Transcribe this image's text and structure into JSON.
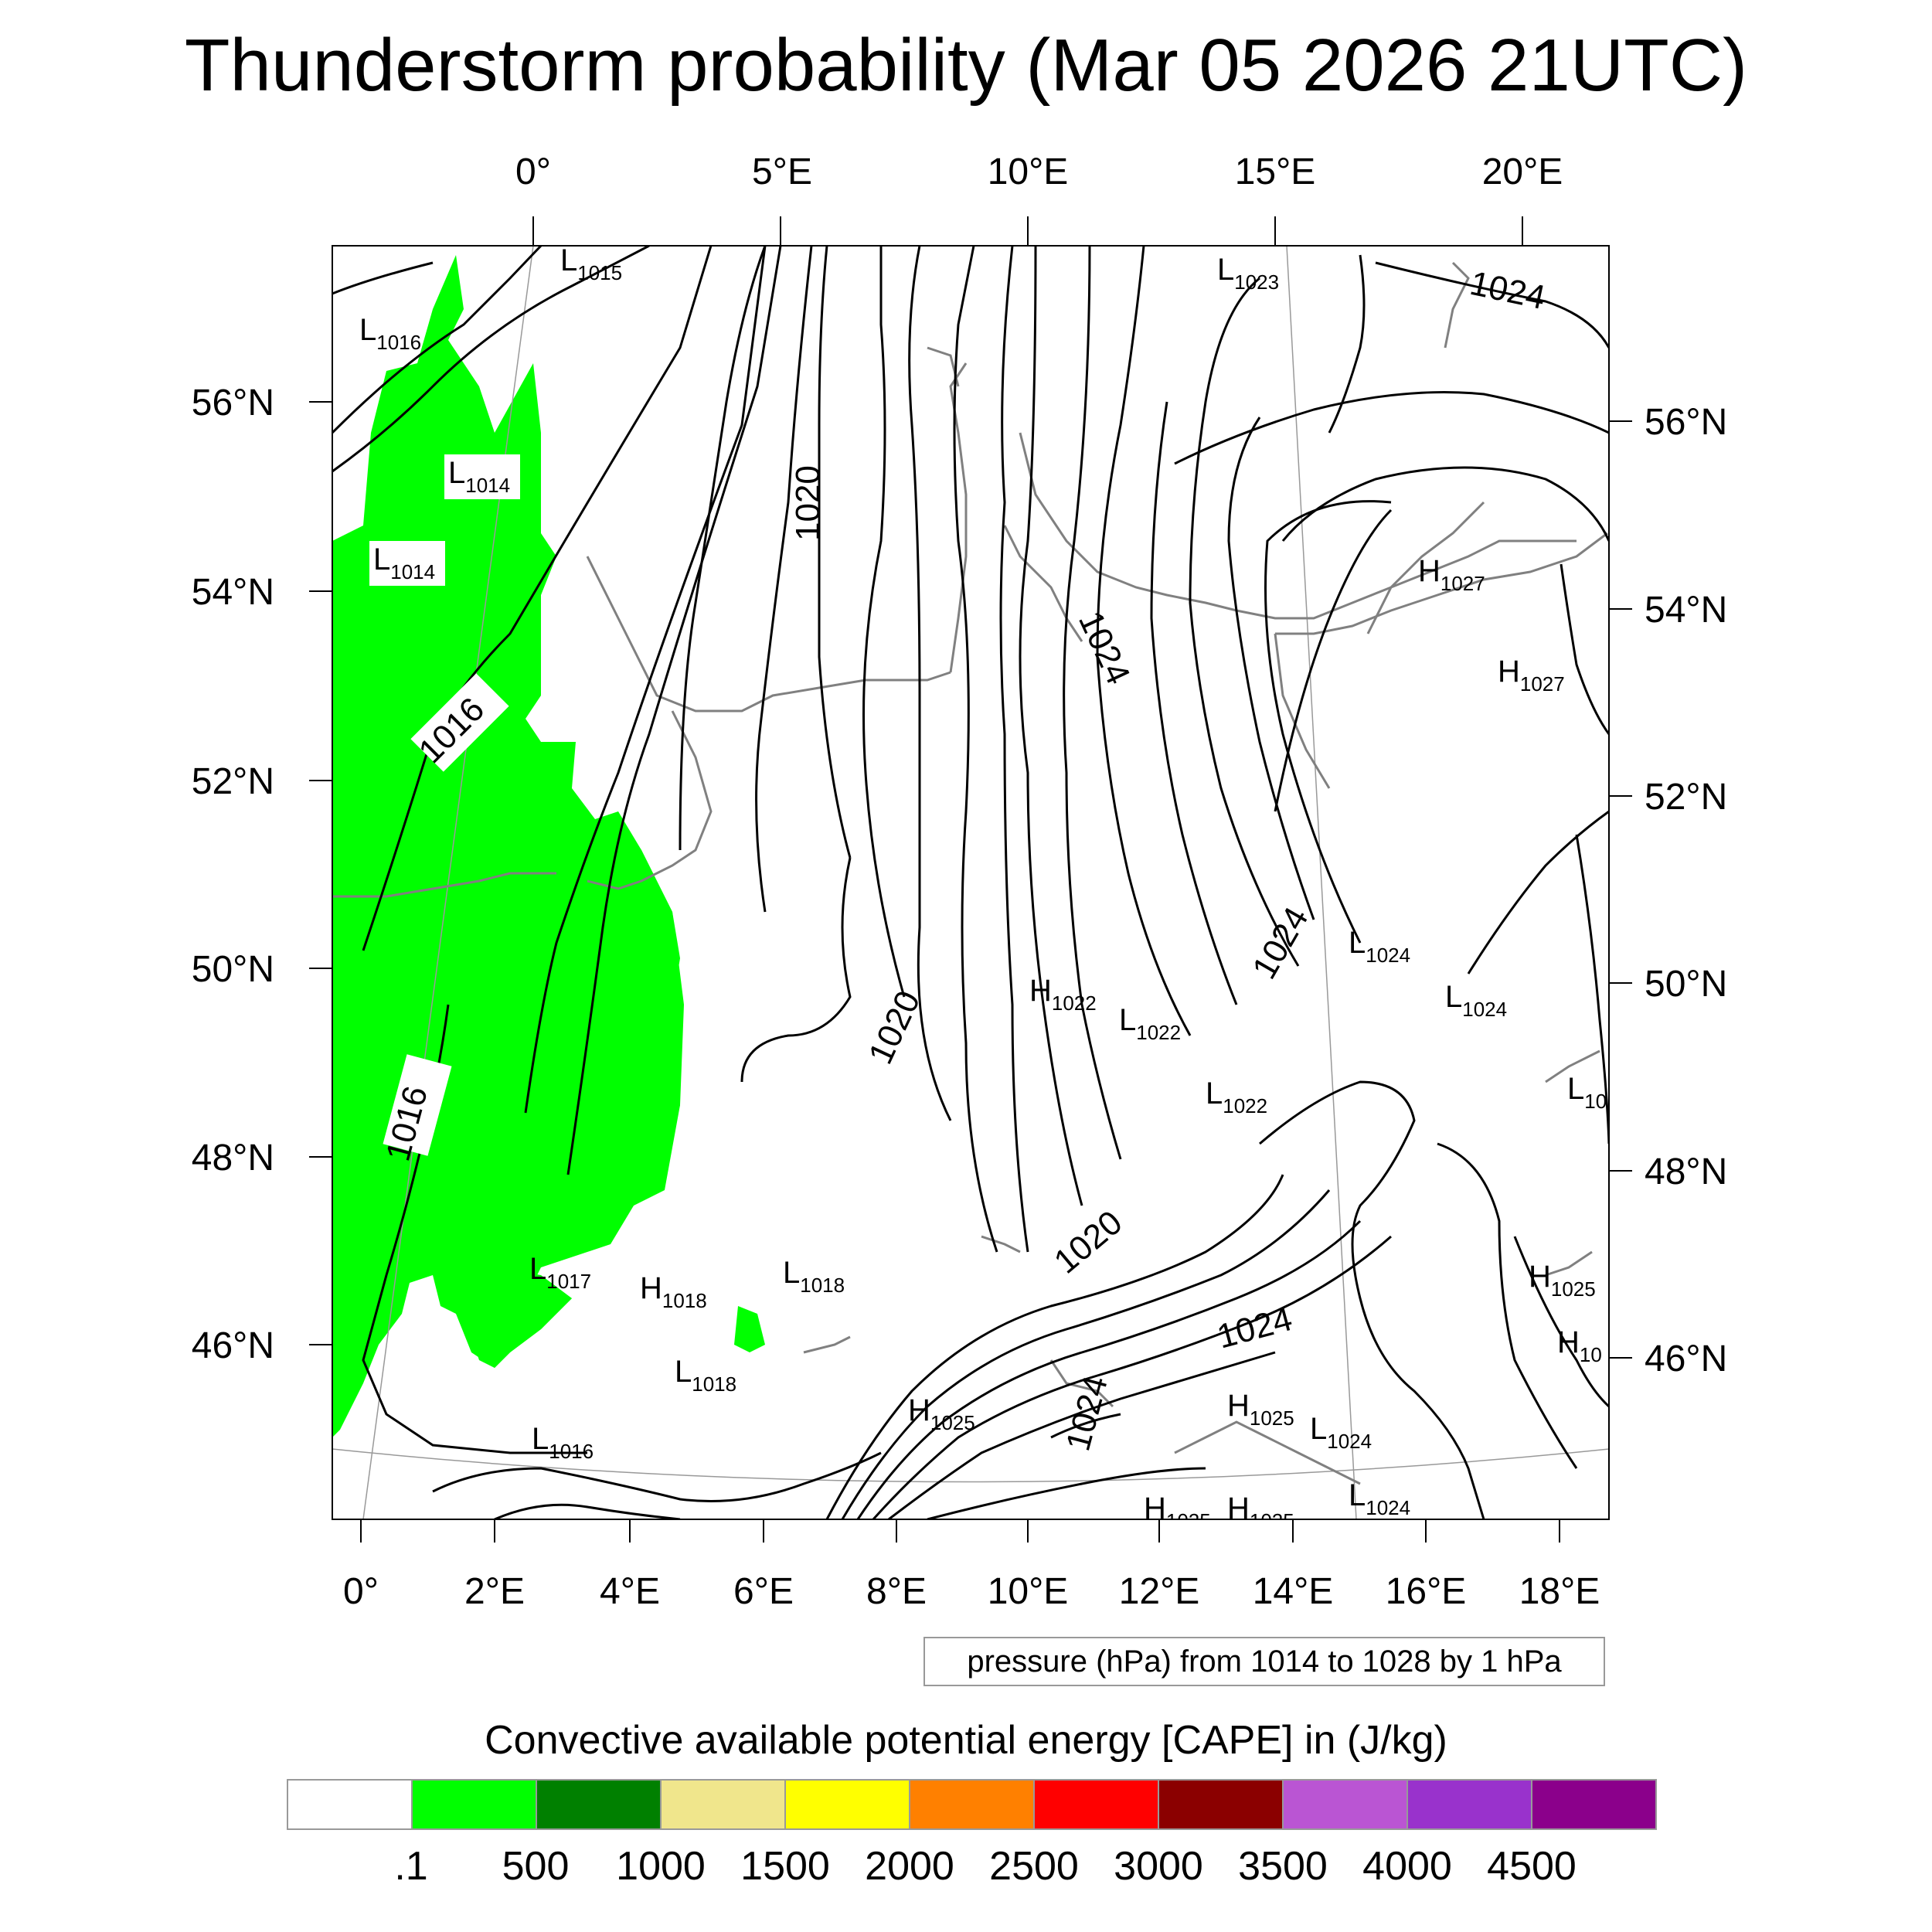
{
  "title": "Thunderstorm probability (Mar 05 2026 21UTC)",
  "top_lon_labels": [
    "0°",
    "5°E",
    "10°E",
    "15°E",
    "20°E"
  ],
  "left_lat_labels": [
    "56°N",
    "54°N",
    "52°N",
    "50°N",
    "48°N",
    "46°N"
  ],
  "right_lat_labels": [
    "56°N",
    "54°N",
    "52°N",
    "50°N",
    "48°N",
    "46°N"
  ],
  "bottom_lon_labels": [
    "0°",
    "2°E",
    "4°E",
    "6°E",
    "8°E",
    "10°E",
    "12°E",
    "14°E",
    "16°E",
    "18°E"
  ],
  "pressure_centers": [
    {
      "type": "L",
      "value": "1015"
    },
    {
      "type": "L",
      "value": "1016"
    },
    {
      "type": "L",
      "value": "1014"
    },
    {
      "type": "L",
      "value": "1014"
    },
    {
      "type": "L",
      "value": "1023"
    },
    {
      "type": "H",
      "value": "1027"
    },
    {
      "type": "H",
      "value": "1027"
    },
    {
      "type": "L",
      "value": "1024"
    },
    {
      "type": "L",
      "value": "1024"
    },
    {
      "type": "H",
      "value": "1022"
    },
    {
      "type": "L",
      "value": "1022"
    },
    {
      "type": "L",
      "value": "1022"
    },
    {
      "type": "L",
      "value": "10"
    },
    {
      "type": "L",
      "value": "1017"
    },
    {
      "type": "H",
      "value": "1018"
    },
    {
      "type": "L",
      "value": "1018"
    },
    {
      "type": "L",
      "value": "1018"
    },
    {
      "type": "H",
      "value": "1025"
    },
    {
      "type": "H",
      "value": "10"
    },
    {
      "type": "H",
      "value": "1025"
    },
    {
      "type": "H",
      "value": "1025"
    },
    {
      "type": "L",
      "value": "1024"
    },
    {
      "type": "L",
      "value": "1016"
    },
    {
      "type": "L",
      "value": "1024"
    },
    {
      "type": "H",
      "value": "1025"
    },
    {
      "type": "H",
      "value": "1025"
    }
  ],
  "contour_labels": [
    "1024",
    "1020",
    "1016",
    "1024",
    "1020",
    "1016",
    "1024",
    "1020",
    "1024",
    "1024"
  ],
  "info_box": "pressure (hPa) from 1014 to 1028 by 1 hPa",
  "colorbar": {
    "title": "Convective available potential energy [CAPE] in (J/kg)",
    "colors": [
      "#ffffff",
      "#00ff00",
      "#008000",
      "#f0e68c",
      "#ffff00",
      "#ff8000",
      "#ff0000",
      "#8b0000",
      "#ba55d3",
      "#9932cc",
      "#8b008b"
    ],
    "labels": [
      ".1",
      "500",
      "1000",
      "1500",
      "2000",
      "2500",
      "3000",
      "3500",
      "4000",
      "4500"
    ]
  },
  "cape_fill_color": "#00ff00",
  "coast_color": "#808080",
  "isobar_color": "#000000"
}
